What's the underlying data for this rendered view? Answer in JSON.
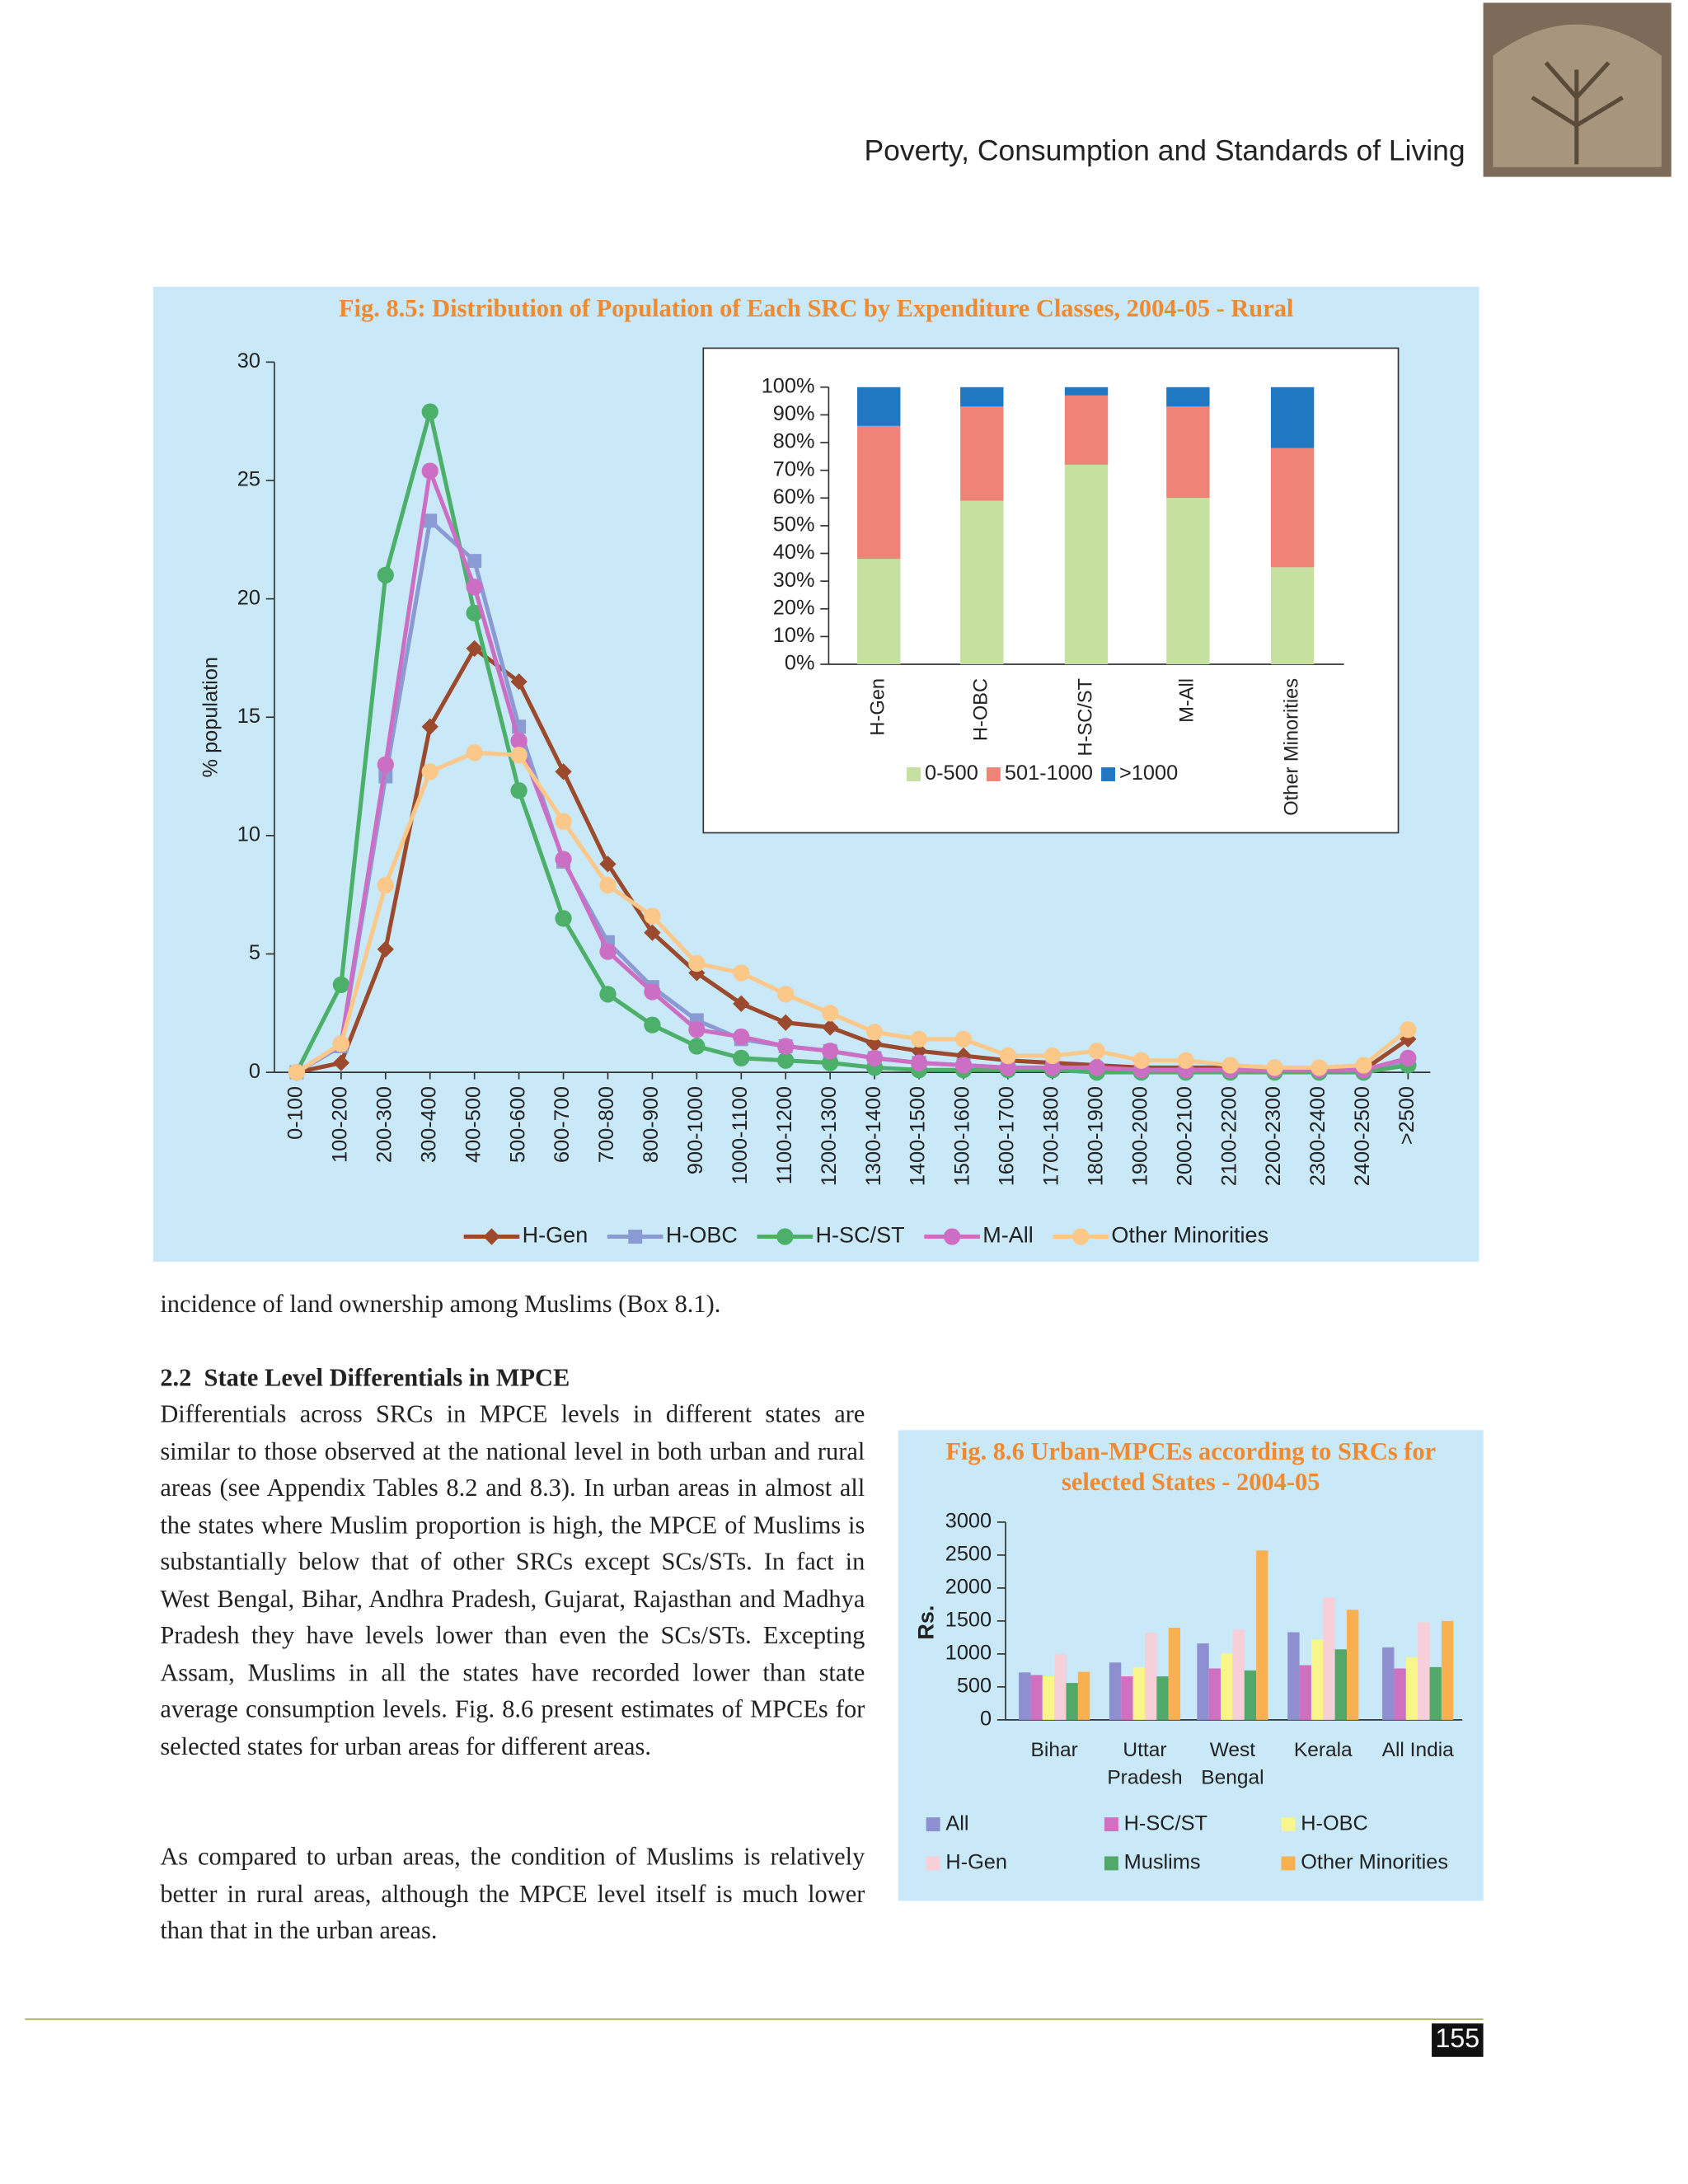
{
  "header": {
    "title": "Poverty, Consumption and Standards of Living"
  },
  "chart_data": [
    {
      "type": "line",
      "title": "Fig. 8.5: Distribution of Population of Each SRC by Expenditure Classes, 2004-05 - Rural",
      "y_label": "% population",
      "categories": [
        "0-100",
        "100-200",
        "200-300",
        "300-400",
        "400-500",
        "500-600",
        "600-700",
        "700-800",
        "800-900",
        "900-1000",
        "1000-1100",
        "1100-1200",
        "1200-1300",
        "1300-1400",
        "1400-1500",
        "1500-1600",
        "1600-1700",
        "1700-1800",
        "1800-1900",
        "1900-2000",
        "2000-2100",
        "2100-2200",
        "2200-2300",
        "2300-2400",
        "2400-2500",
        ">2500"
      ],
      "ylim": [
        0,
        30
      ],
      "yticks": [
        0,
        5,
        10,
        15,
        20,
        25,
        30
      ],
      "legend": "bottom",
      "series": [
        {
          "name": "H-Gen",
          "color": "#9c4a2e",
          "marker": "diamond",
          "values": [
            0,
            0.4,
            5.2,
            14.6,
            17.9,
            16.5,
            12.7,
            8.8,
            5.9,
            4.2,
            2.9,
            2.1,
            1.9,
            1.2,
            0.9,
            0.7,
            0.5,
            0.4,
            0.3,
            0.2,
            0.2,
            0.2,
            0.1,
            0.1,
            0.1,
            1.4
          ]
        },
        {
          "name": "H-OBC",
          "color": "#8c9ad4",
          "marker": "square",
          "values": [
            0,
            1.1,
            12.5,
            23.3,
            21.6,
            14.6,
            8.9,
            5.5,
            3.6,
            2.2,
            1.4,
            1.1,
            0.9,
            0.6,
            0.4,
            0.3,
            0.2,
            0.2,
            0.1,
            0.1,
            0.1,
            0.1,
            0.1,
            0.1,
            0.1,
            0.5
          ]
        },
        {
          "name": "H-SC/ST",
          "color": "#4caf6a",
          "marker": "circle",
          "values": [
            0,
            3.7,
            21.0,
            27.9,
            19.4,
            11.9,
            6.5,
            3.3,
            2.0,
            1.1,
            0.6,
            0.5,
            0.4,
            0.2,
            0.1,
            0.1,
            0.1,
            0.1,
            0,
            0,
            0,
            0,
            0,
            0,
            0,
            0.3
          ]
        },
        {
          "name": "M-All",
          "color": "#cc6fc4",
          "marker": "circle",
          "values": [
            0,
            1.2,
            13.0,
            25.4,
            20.5,
            14.0,
            9.0,
            5.1,
            3.4,
            1.8,
            1.5,
            1.1,
            0.9,
            0.6,
            0.4,
            0.3,
            0.2,
            0.2,
            0.2,
            0.1,
            0.1,
            0.1,
            0.1,
            0.1,
            0.1,
            0.6
          ]
        },
        {
          "name": "Other Minorities",
          "color": "#fbc88a",
          "marker": "circle",
          "values": [
            0,
            1.2,
            7.9,
            12.7,
            13.5,
            13.4,
            10.6,
            7.9,
            6.6,
            4.6,
            4.2,
            3.3,
            2.5,
            1.7,
            1.4,
            1.4,
            0.7,
            0.7,
            0.9,
            0.5,
            0.5,
            0.3,
            0.2,
            0.2,
            0.3,
            1.8
          ]
        }
      ]
    },
    {
      "type": "bar",
      "stacked": true,
      "categories": [
        "H-Gen",
        "H-OBC",
        "H-SC/ST",
        "M-All",
        "Other Minorities"
      ],
      "ylim": [
        0,
        100
      ],
      "yticks": [
        {
          "value": 0,
          "label": "0%"
        },
        {
          "value": 10,
          "label": "10%"
        },
        {
          "value": 20,
          "label": "20%"
        },
        {
          "value": 30,
          "label": "30%"
        },
        {
          "value": 40,
          "label": "40%"
        },
        {
          "value": 50,
          "label": "50%"
        },
        {
          "value": 60,
          "label": "60%"
        },
        {
          "value": 70,
          "label": "70%"
        },
        {
          "value": 80,
          "label": "80%"
        },
        {
          "value": 90,
          "label": "90%"
        },
        {
          "value": 100,
          "label": "100%"
        }
      ],
      "legend": "bottom",
      "series": [
        {
          "name": "0-500",
          "color": "#c5e0a0",
          "values": [
            38,
            59,
            72,
            60,
            35
          ]
        },
        {
          "name": "501-1000",
          "color": "#f08378",
          "values": [
            48,
            34,
            25,
            33,
            43
          ]
        },
        {
          "name": ">1000",
          "color": "#1f78c1",
          "values": [
            14,
            7,
            3,
            7,
            22
          ]
        }
      ]
    },
    {
      "type": "bar",
      "stacked": false,
      "title": "Fig. 8.6 Urban-MPCEs according to SRCs for selected States - 2004-05",
      "y_label": "Rs.",
      "categories": [
        "Bihar",
        "Uttar Pradesh",
        "West Bengal",
        "Kerala",
        "All India"
      ],
      "ylim": [
        0,
        3000
      ],
      "yticks": [
        0,
        500,
        1000,
        1500,
        2000,
        2500,
        3000
      ],
      "legend": "bottom",
      "series": [
        {
          "name": "All",
          "color": "#8d8fd0",
          "values": [
            720,
            870,
            1160,
            1330,
            1100
          ]
        },
        {
          "name": "H-SC/ST",
          "color": "#d070c0",
          "values": [
            680,
            660,
            780,
            830,
            780
          ]
        },
        {
          "name": "H-OBC",
          "color": "#f8f58a",
          "values": [
            660,
            800,
            1010,
            1220,
            950
          ]
        },
        {
          "name": "H-Gen",
          "color": "#f6cfd8",
          "values": [
            1000,
            1320,
            1370,
            1860,
            1480
          ]
        },
        {
          "name": "Muslims",
          "color": "#52a868",
          "values": [
            560,
            660,
            750,
            1070,
            800
          ]
        },
        {
          "name": "Other Minorities",
          "color": "#f8b050",
          "values": [
            730,
            1400,
            2570,
            1670,
            1500
          ]
        }
      ]
    }
  ],
  "body": {
    "paragraph_1": "incidence of land ownership among Muslims (Box 8.1).",
    "heading": "2.2  State Level Differentials in MPCE",
    "paragraph_2": "Differentials across SRCs in MPCE levels in different states are similar to those observed at the national level in both urban and rural areas (see Appendix Tables 8.2 and 8.3). In urban areas in almost all the states where Muslim proportion is high, the MPCE of Muslims is substantially below that of other SRCs except SCs/STs. In fact in West Bengal, Bihar, Andhra Pradesh, Gujarat, Rajasthan and Madhya Pradesh they have levels lower than even the SCs/STs. Excepting Assam, Muslims in all the states have recorded lower than state average consumption levels. Fig. 8.6 present estimates of MPCEs for selected states for urban areas for different areas.",
    "paragraph_3": "As compared to urban areas, the condition of Muslims is relatively better in rural areas, although the MPCE level itself is much lower than that in the urban areas."
  },
  "page_number": "155"
}
